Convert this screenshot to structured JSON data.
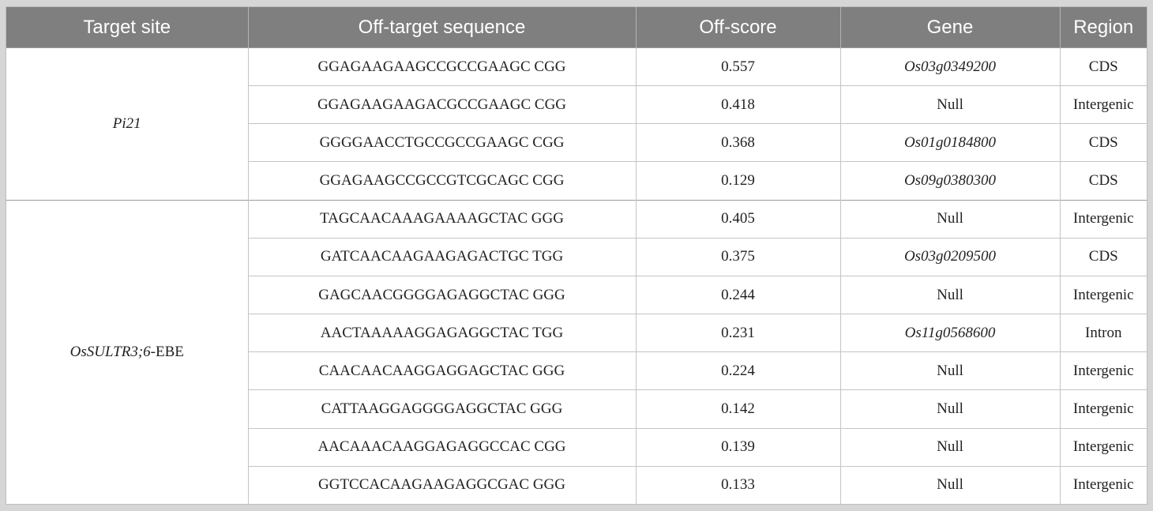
{
  "headers": [
    "Target site",
    "Off-target sequence",
    "Off-score",
    "Gene",
    "Region"
  ],
  "groups": [
    {
      "target_italic": "Pi21",
      "target_suffix": "",
      "rows": [
        {
          "sequence": "GGAGAAGAAGCCGCCGAAGC CGG",
          "score": "0.557",
          "gene": "Os03g0349200",
          "gene_italic": true,
          "region": "CDS"
        },
        {
          "sequence": "GGAGAAGAAGACGCCGAAGC CGG",
          "score": "0.418",
          "gene": "Null",
          "gene_italic": false,
          "region": "Intergenic"
        },
        {
          "sequence": "GGGGAACCTGCCGCCGAAGC CGG",
          "score": "0.368",
          "gene": "Os01g0184800",
          "gene_italic": true,
          "region": "CDS"
        },
        {
          "sequence": "GGAGAAGCCGCCGTCGCAGC CGG",
          "score": "0.129",
          "gene": "Os09g0380300",
          "gene_italic": true,
          "region": "CDS"
        }
      ]
    },
    {
      "target_italic": "OsSULTR3;6",
      "target_suffix": "-EBE",
      "rows": [
        {
          "sequence": "TAGCAACAAAGAAAAGCTAC GGG",
          "score": "0.405",
          "gene": "Null",
          "gene_italic": false,
          "region": "Intergenic"
        },
        {
          "sequence": "GATCAACAAGAAGAGACTGC TGG",
          "score": "0.375",
          "gene": "Os03g0209500",
          "gene_italic": true,
          "region": "CDS"
        },
        {
          "sequence": "GAGCAACGGGGAGAGGCTAC GGG",
          "score": "0.244",
          "gene": "Null",
          "gene_italic": false,
          "region": "Intergenic"
        },
        {
          "sequence": "AACTAAAAAGGAGAGGCTAC TGG",
          "score": "0.231",
          "gene": "Os11g0568600",
          "gene_italic": true,
          "region": "Intron"
        },
        {
          "sequence": "CAACAACAAGGAGGAGCTAC GGG",
          "score": "0.224",
          "gene": "Null",
          "gene_italic": false,
          "region": "Intergenic"
        },
        {
          "sequence": "CATTAAGGAGGGGAGGCTAC GGG",
          "score": "0.142",
          "gene": "Null",
          "gene_italic": false,
          "region": "Intergenic"
        },
        {
          "sequence": "AACAAACAAGGAGAGGCCAC CGG",
          "score": "0.139",
          "gene": "Null",
          "gene_italic": false,
          "region": "Intergenic"
        },
        {
          "sequence": "GGTCCACAAGAAGAGGCGAC GGG",
          "score": "0.133",
          "gene": "Null",
          "gene_italic": false,
          "region": "Intergenic"
        }
      ]
    }
  ]
}
